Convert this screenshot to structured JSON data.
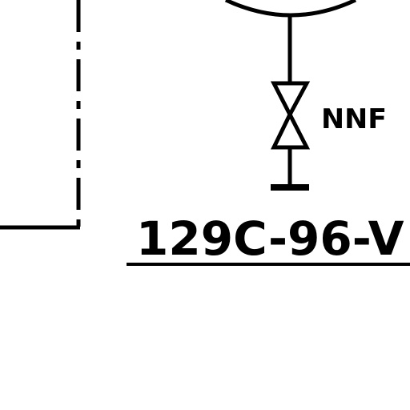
{
  "diagram": {
    "valve_note": "NNF",
    "line_tag": "129C-96-V",
    "colors": {
      "ink": "#000000",
      "paper": "#ffffff"
    }
  }
}
